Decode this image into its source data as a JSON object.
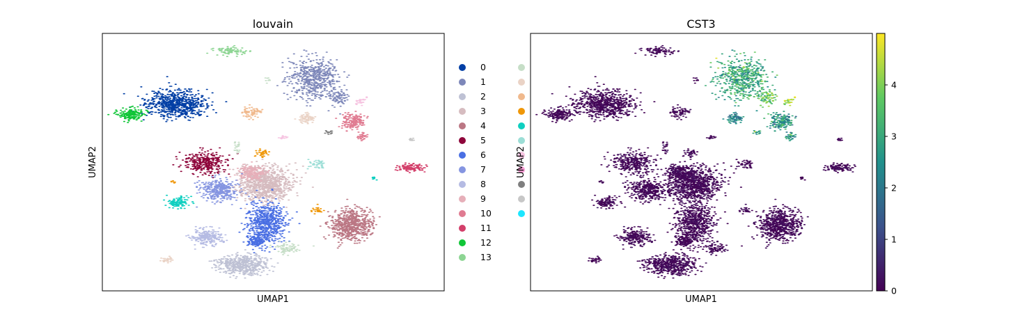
{
  "chart_data": [
    {
      "type": "scatter",
      "title": "louvain",
      "xlabel": "UMAP1",
      "ylabel": "UMAP2",
      "legend_position": "right",
      "grid": false,
      "legend": [
        {
          "label": "0",
          "color": "#023fa5"
        },
        {
          "label": "1",
          "color": "#7d87b9"
        },
        {
          "label": "2",
          "color": "#bec1d4"
        },
        {
          "label": "3",
          "color": "#d6bcc0"
        },
        {
          "label": "4",
          "color": "#bb7784"
        },
        {
          "label": "5",
          "color": "#8e063b"
        },
        {
          "label": "6",
          "color": "#4a6fe3"
        },
        {
          "label": "7",
          "color": "#8595e1"
        },
        {
          "label": "8",
          "color": "#b5bbe3"
        },
        {
          "label": "9",
          "color": "#e6afb9"
        },
        {
          "label": "10",
          "color": "#e07b91"
        },
        {
          "label": "11",
          "color": "#d33f6a"
        },
        {
          "label": "12",
          "color": "#11c638"
        },
        {
          "label": "13",
          "color": "#8dd593"
        },
        {
          "label": "",
          "color": "#c6dec7"
        },
        {
          "label": "",
          "color": "#ead3c6"
        },
        {
          "label": "",
          "color": "#f0b98d"
        },
        {
          "label": "",
          "color": "#ef9708"
        },
        {
          "label": "",
          "color": "#0fcfc0"
        },
        {
          "label": "",
          "color": "#9cded6"
        },
        {
          "label": "",
          "color": "#f6c4e1"
        },
        {
          "label": "",
          "color": "#f79cd4"
        },
        {
          "label": "",
          "color": "#7f7f7f"
        },
        {
          "label": "",
          "color": "#c7c7c7"
        },
        {
          "label": "",
          "color": "#1ce6ff"
        }
      ]
    },
    {
      "type": "scatter",
      "title": "CST3",
      "xlabel": "UMAP1",
      "ylabel": "UMAP2",
      "colormap": "viridis",
      "colorbar": {
        "min": 0,
        "max": 5,
        "ticks": [
          0,
          1,
          2,
          3,
          4
        ]
      }
    }
  ]
}
